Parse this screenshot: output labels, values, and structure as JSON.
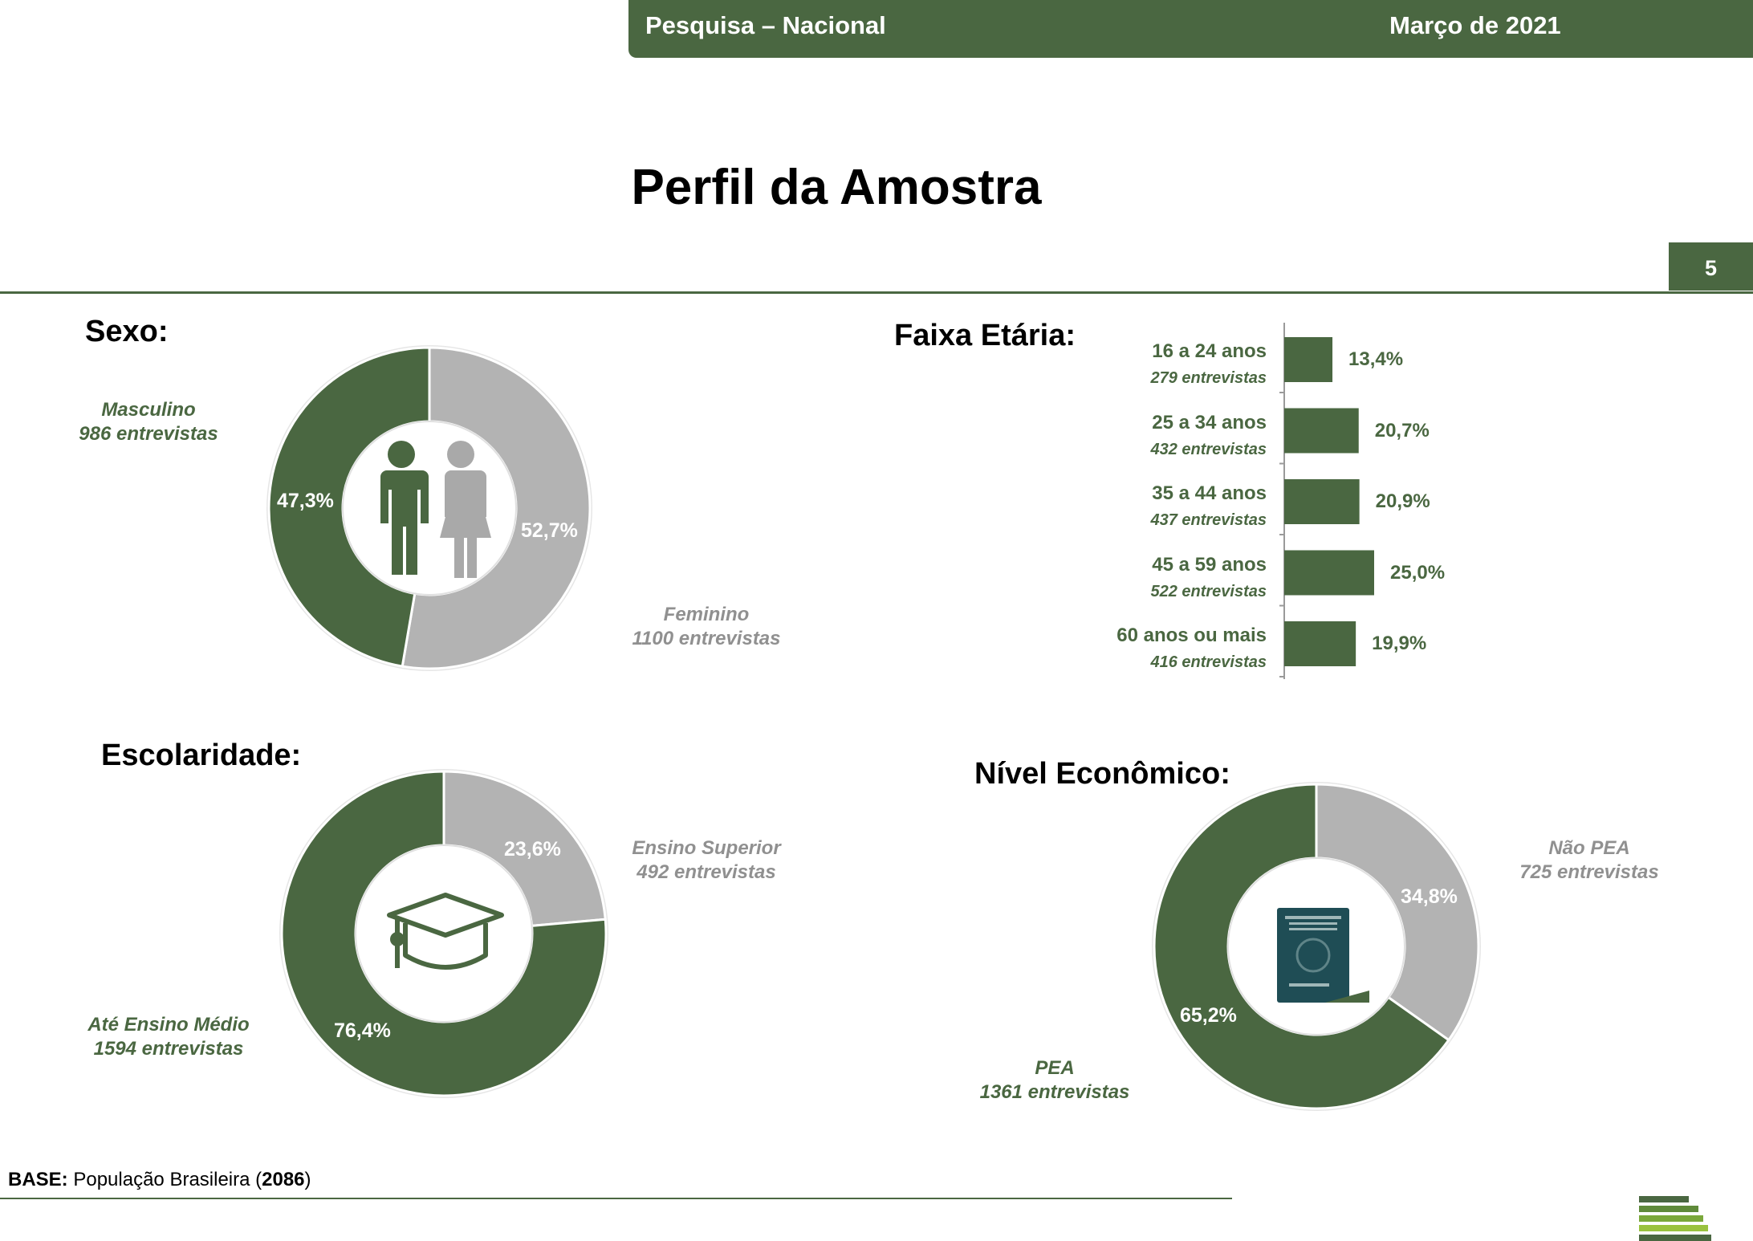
{
  "header": {
    "survey": "Pesquisa – Nacional",
    "date": "Março de 2021"
  },
  "page": {
    "title": "Perfil da Amostra",
    "number": "5"
  },
  "colors": {
    "green": "#4a6741",
    "gray": "#b3b3b3"
  },
  "chart_data": [
    {
      "type": "pie",
      "title": "Sexo:",
      "slices": [
        {
          "name": "Masculino",
          "sub": "986 entrevistas",
          "value": 47.3,
          "label": "47,3%"
        },
        {
          "name": "Feminino",
          "sub": "1100 entrevistas",
          "value": 52.7,
          "label": "52,7%"
        }
      ],
      "center_icon": "man-woman-icon"
    },
    {
      "type": "bar",
      "title": "Faixa Etária:",
      "categories": [
        "16 a 24 anos",
        "25 a 34 anos",
        "35 a 44 anos",
        "45 a 59 anos",
        "60 anos ou mais"
      ],
      "subs": [
        "279  entrevistas",
        "432 entrevistas",
        "437  entrevistas",
        "522 entrevistas",
        "416 entrevistas"
      ],
      "values": [
        13.4,
        20.7,
        20.9,
        25.0,
        19.9
      ],
      "labels": [
        "13,4%",
        "20,7%",
        "20,9%",
        "25,0%",
        "19,9%"
      ]
    },
    {
      "type": "pie",
      "title": "Escolaridade:",
      "slices": [
        {
          "name": "Ensino Superior",
          "sub": "492 entrevistas",
          "value": 23.6,
          "label": "23,6%"
        },
        {
          "name": "Até Ensino Médio",
          "sub": "1594 entrevistas",
          "value": 76.4,
          "label": "76,4%"
        }
      ],
      "center_icon": "graduation-cap-icon"
    },
    {
      "type": "pie",
      "title": "Nível Econômico:",
      "slices": [
        {
          "name": "Não PEA",
          "sub": "725 entrevistas",
          "value": 34.8,
          "label": "34,8%"
        },
        {
          "name": "PEA",
          "sub": "1361 entrevistas",
          "value": 65.2,
          "label": "65,2%"
        }
      ],
      "center_icon": "work-card-icon"
    }
  ],
  "base": {
    "label": "BASE:",
    "text": "População Brasileira",
    "count": "2086"
  }
}
